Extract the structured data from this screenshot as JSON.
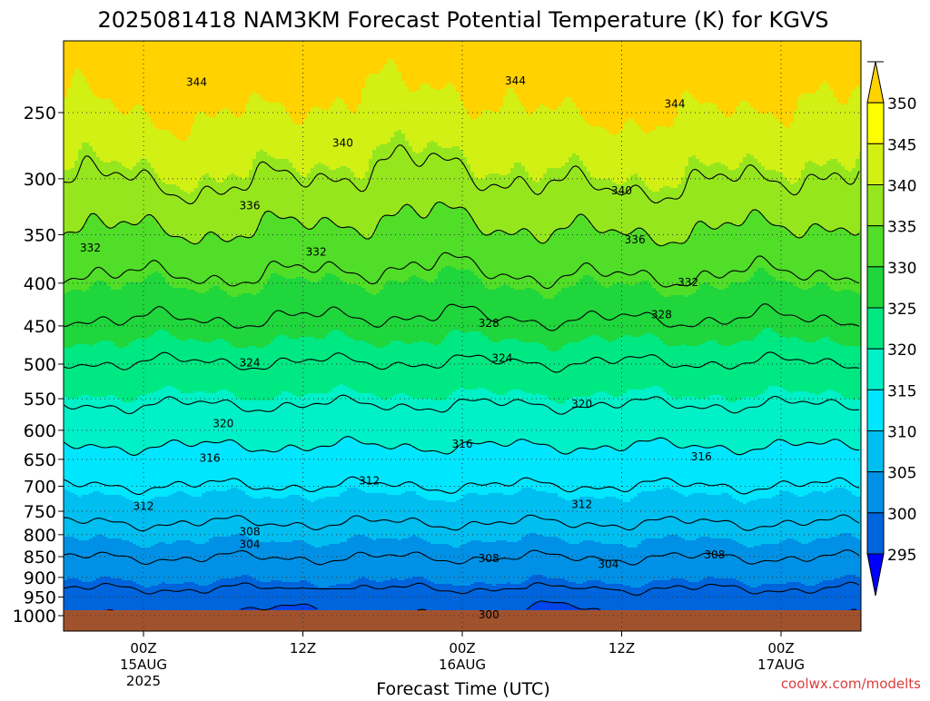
{
  "chart_data": {
    "type": "heatmap",
    "title": "2025081418 NAM3KM Forecast Potential Temperature (K) for KGVS",
    "xlabel": "Forecast Time (UTC)",
    "ylabel": "",
    "watermark": "coolwx.com/modelts",
    "y_scale": "log",
    "ylim": [
      1000,
      200
    ],
    "y_ticks": [
      250,
      300,
      350,
      400,
      450,
      500,
      550,
      600,
      650,
      700,
      750,
      800,
      850,
      900,
      950,
      1000
    ],
    "x_range_hours": [
      -5,
      45
    ],
    "x_ticks": [
      {
        "hour": 0,
        "lines": [
          "00Z",
          "15AUG",
          "2025"
        ]
      },
      {
        "hour": 12,
        "lines": [
          "12Z"
        ]
      },
      {
        "hour": 24,
        "lines": [
          "00Z",
          "16AUG"
        ]
      },
      {
        "hour": 36,
        "lines": [
          "12Z"
        ]
      },
      {
        "hour": 48,
        "lines": [
          "00Z",
          "17AUG"
        ]
      }
    ],
    "colorbar": {
      "levels": [
        295,
        300,
        305,
        310,
        315,
        320,
        325,
        330,
        335,
        340,
        345,
        350
      ],
      "colors": [
        "#0000ff",
        "#0046eb",
        "#0064dc",
        "#0091e6",
        "#00bef0",
        "#00e6ff",
        "#00f0c8",
        "#00e882",
        "#1fd63c",
        "#50de28",
        "#96e61e",
        "#d2f014",
        "#ffff00",
        "#ffd200"
      ]
    },
    "ground_color": "#a0522d",
    "grid": true,
    "contour_interval": 4,
    "contours": [
      {
        "value": 300,
        "labels": [
          {
            "hour": 26,
            "p": 997
          }
        ]
      },
      {
        "value": 304,
        "labels": [
          {
            "hour": 8,
            "p": 822
          },
          {
            "hour": 35,
            "p": 868
          }
        ]
      },
      {
        "value": 308,
        "labels": [
          {
            "hour": 8,
            "p": 793
          },
          {
            "hour": 26,
            "p": 854
          },
          {
            "hour": 43,
            "p": 846
          }
        ]
      },
      {
        "value": 312,
        "labels": [
          {
            "hour": 0,
            "p": 740
          },
          {
            "hour": 17,
            "p": 690
          },
          {
            "hour": 33,
            "p": 736
          }
        ]
      },
      {
        "value": 316,
        "labels": [
          {
            "hour": 5,
            "p": 648
          },
          {
            "hour": 24,
            "p": 623
          },
          {
            "hour": 42,
            "p": 645
          }
        ]
      },
      {
        "value": 320,
        "labels": [
          {
            "hour": 6,
            "p": 589
          },
          {
            "hour": 33,
            "p": 558
          }
        ]
      },
      {
        "value": 324,
        "labels": [
          {
            "hour": 8,
            "p": 498
          },
          {
            "hour": 27,
            "p": 492
          }
        ]
      },
      {
        "value": 328,
        "labels": [
          {
            "hour": 26,
            "p": 447
          },
          {
            "hour": 39,
            "p": 436
          }
        ]
      },
      {
        "value": 332,
        "labels": [
          {
            "hour": -4,
            "p": 363
          },
          {
            "hour": 13,
            "p": 367
          },
          {
            "hour": 41,
            "p": 399
          }
        ]
      },
      {
        "value": 336,
        "labels": [
          {
            "hour": 8,
            "p": 323
          },
          {
            "hour": 37,
            "p": 355
          }
        ]
      },
      {
        "value": 340,
        "labels": [
          {
            "hour": 15,
            "p": 272
          },
          {
            "hour": 36,
            "p": 310
          }
        ]
      },
      {
        "value": 344,
        "labels": [
          {
            "hour": 4,
            "p": 230
          },
          {
            "hour": 28,
            "p": 229
          },
          {
            "hour": 40,
            "p": 244
          }
        ]
      }
    ]
  }
}
